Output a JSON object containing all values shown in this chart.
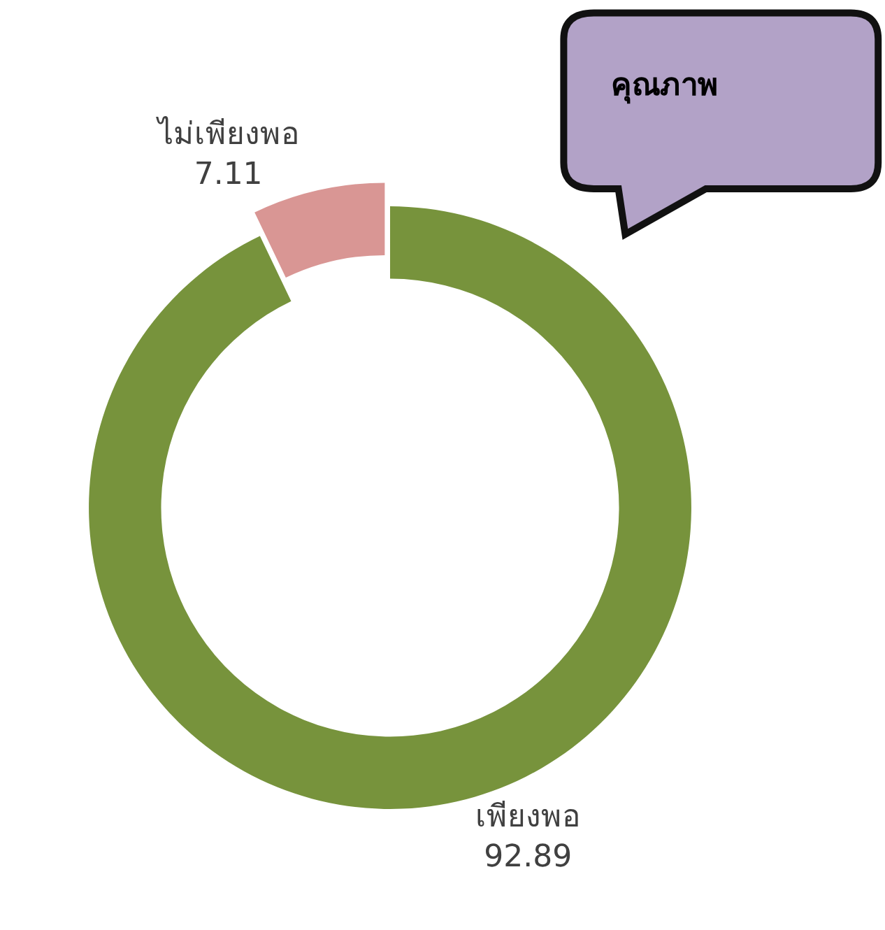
{
  "chart_data": {
    "type": "donut",
    "title": "คุณภาพ",
    "categories": [
      "เพียงพอ",
      "ไม่เพียงพอ"
    ],
    "values": [
      92.89,
      7.11
    ],
    "colors": [
      "#77933c",
      "#d99694"
    ],
    "data_labels": true,
    "legend": false
  }
}
